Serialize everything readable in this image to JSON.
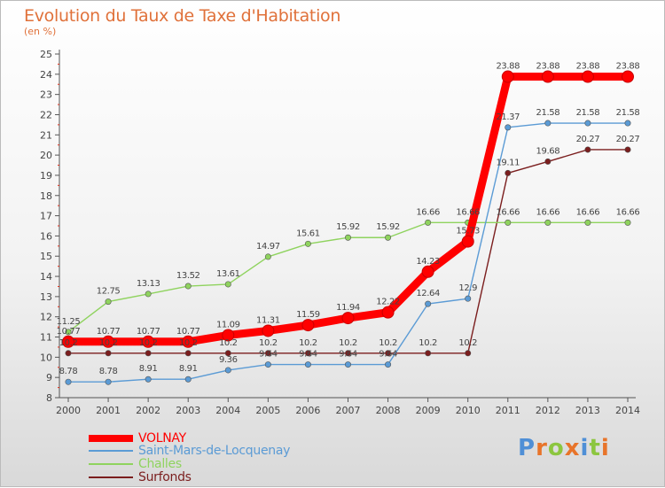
{
  "chart_data": {
    "type": "line",
    "title": "Evolution du Taux de Taxe d'Habitation",
    "subtitle": "(en %)",
    "x": [
      "2000",
      "2001",
      "2002",
      "2003",
      "2004",
      "2005",
      "2006",
      "2007",
      "2008",
      "2009",
      "2010",
      "2011",
      "2012",
      "2013",
      "2014"
    ],
    "ylim": [
      8,
      25
    ],
    "yticks": [
      8,
      9,
      10,
      11,
      12,
      13,
      14,
      15,
      16,
      17,
      18,
      19,
      20,
      21,
      22,
      23,
      24,
      25
    ],
    "grid": false,
    "legend_position": "bottom-left",
    "series": [
      {
        "name": "VOLNAY",
        "color": "#ff0000",
        "values": [
          10.77,
          10.77,
          10.77,
          10.77,
          11.09,
          11.31,
          11.59,
          11.94,
          12.22,
          14.23,
          15.73,
          23.88,
          23.88,
          23.88,
          23.88
        ]
      },
      {
        "name": "Saint-Mars-de-Locquenay",
        "color": "#5b9bd5",
        "values": [
          8.78,
          8.78,
          8.91,
          8.91,
          9.36,
          9.64,
          9.64,
          9.64,
          9.64,
          12.64,
          12.9,
          21.37,
          21.58,
          21.58,
          21.58
        ]
      },
      {
        "name": "Challes",
        "color": "#8fd35e",
        "values": [
          11.25,
          12.75,
          13.13,
          13.52,
          13.61,
          14.97,
          15.61,
          15.92,
          15.92,
          16.66,
          16.66,
          16.66,
          16.66,
          16.66,
          16.66
        ]
      },
      {
        "name": "Surfonds",
        "color": "#7b1e1e",
        "values": [
          10.2,
          10.2,
          10.2,
          10.2,
          10.2,
          10.2,
          10.2,
          10.2,
          10.2,
          10.2,
          10.2,
          19.11,
          19.68,
          20.27,
          20.27
        ]
      }
    ]
  },
  "brand": {
    "letters": [
      "P",
      "r",
      "o",
      "x",
      "i",
      "t",
      "i"
    ],
    "colors": [
      "#4f8fd6",
      "#e8742a",
      "#8cc63f",
      "#e8742a",
      "#4f8fd6",
      "#8cc63f",
      "#e8742a"
    ]
  }
}
